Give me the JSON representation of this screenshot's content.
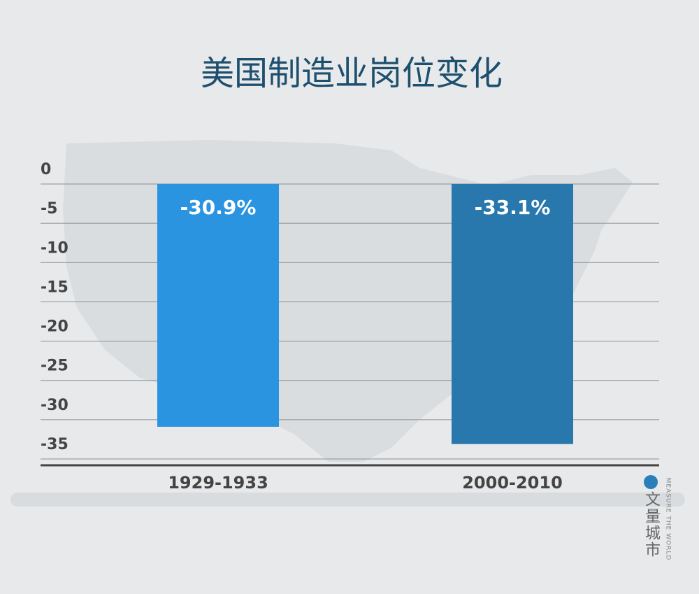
{
  "chart_data": {
    "type": "bar",
    "title": "美国制造业岗位变化",
    "categories": [
      "1929-1933",
      "2000-2010"
    ],
    "values": [
      -30.9,
      -33.1
    ],
    "value_labels": [
      "-30.9%",
      "-33.1%"
    ],
    "colors": [
      "#2b94e1",
      "#2878ad"
    ],
    "ylim": [
      -35.8,
      0
    ],
    "yticks": [
      0,
      -5,
      -10,
      -15,
      -20,
      -25,
      -30,
      -35
    ],
    "grid": true
  },
  "watermark": {
    "brand": "文量城市",
    "tagline": "MEASURE THE WORLD"
  }
}
